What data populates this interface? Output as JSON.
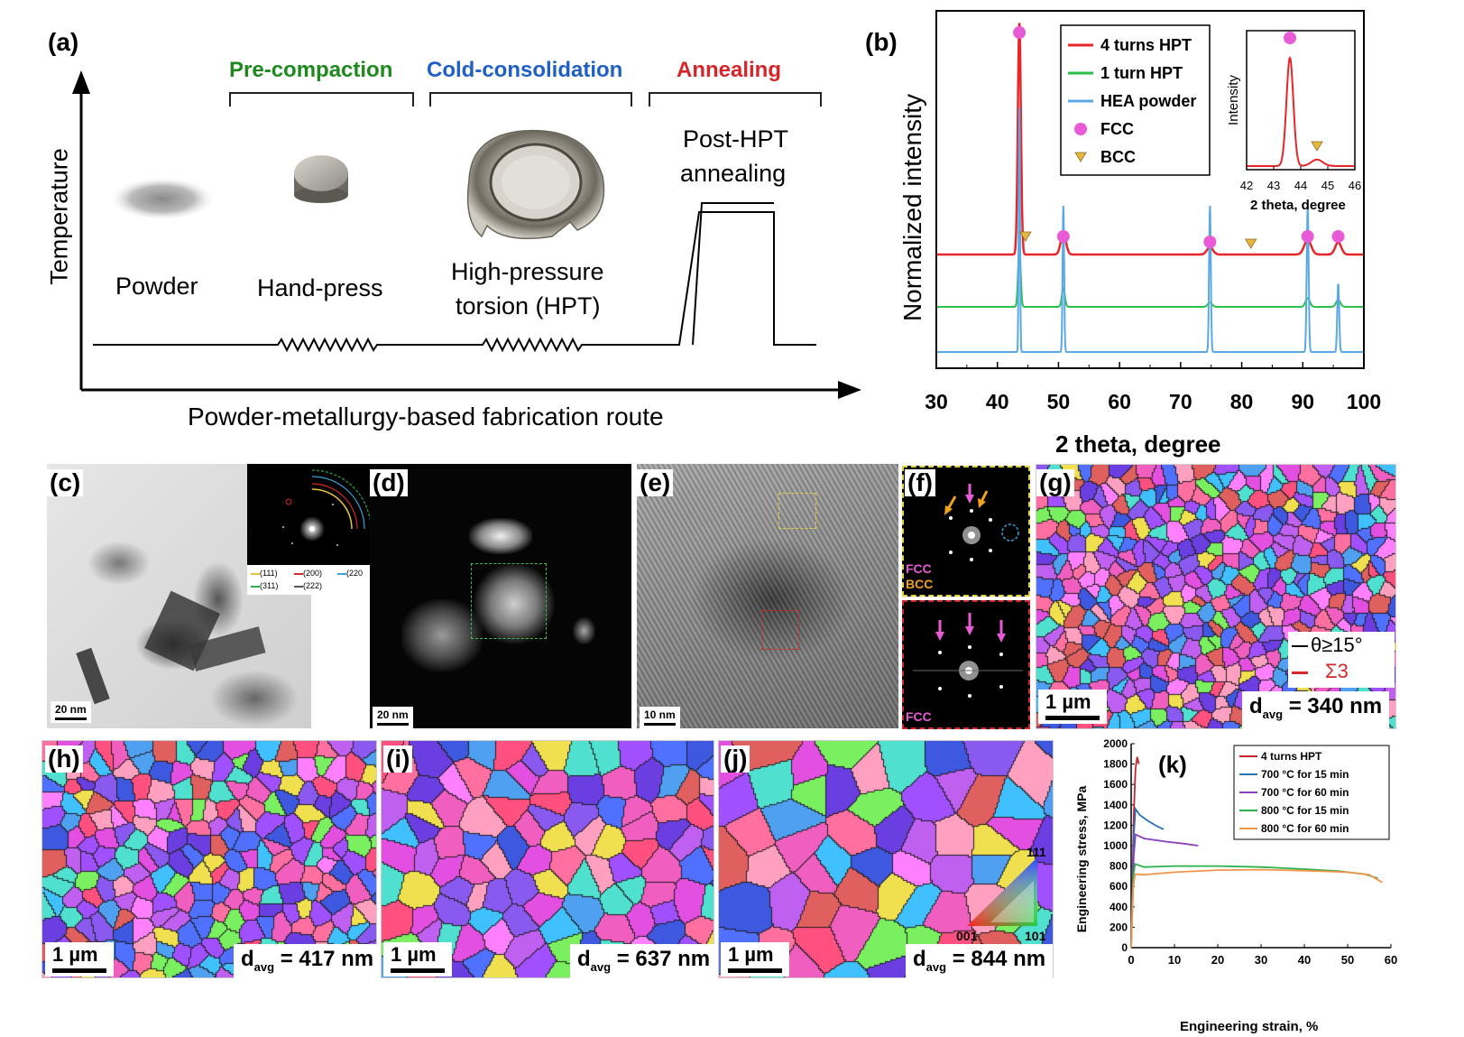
{
  "panel_a": {
    "label": "(a)",
    "stages": [
      {
        "name": "Pre-compaction",
        "color": "#1e8a1e"
      },
      {
        "name": "Cold-consolidation",
        "color": "#1f5fc6"
      },
      {
        "name": "Annealing",
        "color": "#d6262a"
      }
    ],
    "y_axis": "Temperature",
    "x_axis": "Powder-metallurgy-based fabrication route",
    "captions": {
      "powder": "Powder",
      "handpress": "Hand-press",
      "hpt_line1": "High-pressure",
      "hpt_line2": "torsion (HPT)",
      "anneal_line1": "Post-HPT",
      "anneal_line2": "annealing"
    }
  },
  "panel_b": {
    "label": "(b)",
    "chart_data": {
      "type": "line",
      "xlabel": "2 theta, degree",
      "ylabel": "Normalized intensity",
      "xlim": [
        30,
        100
      ],
      "x_ticks": [
        30,
        40,
        50,
        60,
        70,
        80,
        90,
        100
      ],
      "series": [
        {
          "name": "4 turns HPT",
          "color": "#e8262a",
          "offset": 2.0,
          "peaks": [
            {
              "x": 43.6,
              "h": 1.9,
              "w": 0.35
            },
            {
              "x": 50.8,
              "h": 0.18,
              "w": 0.6
            },
            {
              "x": 74.8,
              "h": 0.06,
              "w": 0.7
            },
            {
              "x": 90.8,
              "h": 0.12,
              "w": 0.8
            },
            {
              "x": 95.8,
              "h": 0.1,
              "w": 0.7
            }
          ]
        },
        {
          "name": "1 turn HPT",
          "color": "#2bbf4c",
          "offset": 1.0,
          "peaks": [
            {
              "x": 43.6,
              "h": 1.1,
              "w": 0.3
            },
            {
              "x": 50.8,
              "h": 0.35,
              "w": 0.35
            },
            {
              "x": 74.8,
              "h": 0.08,
              "w": 0.5
            },
            {
              "x": 90.8,
              "h": 0.16,
              "w": 0.5
            },
            {
              "x": 95.8,
              "h": 0.13,
              "w": 0.5
            }
          ]
        },
        {
          "name": "HEA powder",
          "color": "#5aa9e6",
          "offset": 0.0,
          "peaks": [
            {
              "x": 43.6,
              "h": 1.0,
              "w": 0.15
            },
            {
              "x": 50.8,
              "h": 0.6,
              "w": 0.18
            },
            {
              "x": 74.8,
              "h": 0.6,
              "w": 0.2
            },
            {
              "x": 90.8,
              "h": 0.6,
              "w": 0.22
            },
            {
              "x": 95.8,
              "h": 0.28,
              "w": 0.22
            }
          ]
        }
      ],
      "fcc_markers": [
        43.6,
        50.8,
        74.8,
        90.8,
        95.8
      ],
      "bcc_markers": [
        44.6,
        81.5
      ],
      "legend": [
        {
          "label": "4 turns HPT",
          "kind": "line",
          "color": "#e8262a"
        },
        {
          "label": "1 turn HPT",
          "kind": "line",
          "color": "#2bbf4c"
        },
        {
          "label": "HEA powder",
          "kind": "line",
          "color": "#5aa9e6"
        },
        {
          "label": "FCC",
          "kind": "circle",
          "color": "#e85ad6"
        },
        {
          "label": "BCC",
          "kind": "triangle",
          "color": "#e8b83c"
        }
      ],
      "inset": {
        "ylabel": "Intensity",
        "xlabel": "2 theta, degree",
        "xlim": [
          42,
          46
        ],
        "x_ticks": [
          42,
          43,
          44,
          45,
          46
        ],
        "peak_x": 43.6,
        "fcc_x": 43.6,
        "bcc_x": 44.6,
        "color": "#e8262a"
      }
    }
  },
  "panel_c": {
    "label": "(c)",
    "scale": "20 nm",
    "saed_legend": [
      "(111)",
      "(200)",
      "(220",
      "(311)",
      "(222)"
    ]
  },
  "panel_d": {
    "label": "(d)",
    "scale": "20 nm"
  },
  "panel_e": {
    "label": "(e)",
    "scale": "10 nm"
  },
  "panel_f": {
    "label": "(f)",
    "top_fcc": "FCC",
    "top_bcc": "BCC",
    "bottom_fcc": "FCC"
  },
  "panel_g": {
    "label": "(g)",
    "scale": "1 µm",
    "davg_prefix": "d",
    "davg_sub": "avg",
    "davg_value": " = 340 nm",
    "legend": [
      {
        "label": "θ≥15°",
        "color": "#000000"
      },
      {
        "label": "Σ3",
        "color": "#d6262a"
      }
    ]
  },
  "panel_h": {
    "label": "(h)",
    "scale": "1 µm",
    "davg_prefix": "d",
    "davg_sub": "avg",
    "davg_value": " = 417 nm"
  },
  "panel_i": {
    "label": "(i)",
    "scale": "1 µm",
    "davg_prefix": "d",
    "davg_sub": "avg",
    "davg_value": " = 637 nm"
  },
  "panel_j": {
    "label": "(j)",
    "scale": "1 µm",
    "davg_prefix": "d",
    "davg_sub": "avg",
    "davg_value": " = 844 nm",
    "ipf": {
      "top": "111",
      "left": "001",
      "right": "101"
    }
  },
  "panel_k": {
    "label": "(k)",
    "chart_data": {
      "type": "line",
      "xlabel": "Engineering strain, %",
      "ylabel": "Engineering stress, MPa",
      "xlim": [
        0,
        60
      ],
      "ylim": [
        0,
        2000
      ],
      "x_ticks": [
        0,
        10,
        20,
        30,
        40,
        50,
        60
      ],
      "y_ticks": [
        0,
        200,
        400,
        600,
        800,
        1000,
        1200,
        1400,
        1600,
        1800,
        2000
      ],
      "series": [
        {
          "name": "4 turns HPT",
          "color": "#c8232a",
          "points": [
            [
              0,
              0
            ],
            [
              0.6,
              1300
            ],
            [
              1.0,
              1750
            ],
            [
              1.4,
              1870
            ],
            [
              1.8,
              1800
            ]
          ]
        },
        {
          "name": "700 °C for 15 min",
          "color": "#2a6fb8",
          "points": [
            [
              0,
              0
            ],
            [
              0.6,
              1100
            ],
            [
              1.0,
              1360
            ],
            [
              2,
              1300
            ],
            [
              4,
              1240
            ],
            [
              6,
              1190
            ],
            [
              7.5,
              1160
            ]
          ]
        },
        {
          "name": "700 °C for 60 min",
          "color": "#8a3fbf",
          "points": [
            [
              0,
              0
            ],
            [
              0.6,
              900
            ],
            [
              1.0,
              1110
            ],
            [
              3,
              1070
            ],
            [
              8,
              1040
            ],
            [
              12,
              1020
            ],
            [
              15.5,
              1000
            ]
          ]
        },
        {
          "name": "800 °C for 15 min",
          "color": "#2bb04a",
          "points": [
            [
              0,
              0
            ],
            [
              0.5,
              700
            ],
            [
              0.9,
              820
            ],
            [
              3,
              790
            ],
            [
              10,
              800
            ],
            [
              20,
              800
            ],
            [
              30,
              790
            ],
            [
              40,
              770
            ],
            [
              48,
              750
            ],
            [
              54,
              720
            ],
            [
              57,
              680
            ]
          ]
        },
        {
          "name": "800 °C for 60 min",
          "color": "#f2944a",
          "points": [
            [
              0,
              0
            ],
            [
              0.5,
              600
            ],
            [
              0.9,
              720
            ],
            [
              3,
              715
            ],
            [
              10,
              740
            ],
            [
              20,
              760
            ],
            [
              30,
              765
            ],
            [
              40,
              755
            ],
            [
              50,
              740
            ],
            [
              55,
              715
            ],
            [
              58,
              640
            ]
          ]
        }
      ]
    }
  }
}
